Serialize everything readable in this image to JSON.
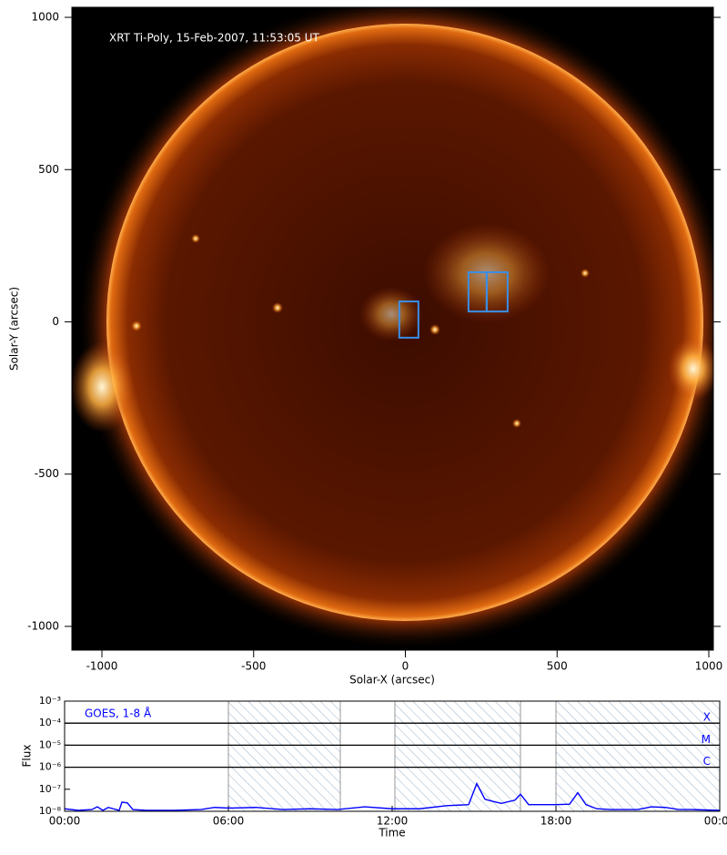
{
  "chart_data": [
    {
      "type": "image",
      "title": "XRT Ti-Poly, 15-Feb-2007, 11:53:05 UT",
      "xlabel": "Solar-X (arcsec)",
      "ylabel": "Solar-Y (arcsec)",
      "xlim": [
        -1099,
        1015
      ],
      "ylim": [
        -1078,
        1033
      ],
      "xticks": [
        {
          "value": -1000,
          "label": "-1000"
        },
        {
          "value": -500,
          "label": "-500"
        },
        0,
        500,
        1000
      ],
      "yticks": [
        {
          "value": -1000,
          "label": "-1000"
        },
        {
          "value": -500,
          "label": "-500"
        },
        0,
        500,
        1000
      ],
      "box_color": "#3a8ee6",
      "boxes": [
        {
          "x": [
            -20,
            43
          ],
          "y": [
            -52,
            67
          ]
        },
        {
          "x": [
            208,
            268
          ],
          "y": [
            34,
            163
          ]
        },
        {
          "x": [
            268,
            337
          ],
          "y": [
            34,
            163
          ]
        }
      ]
    },
    {
      "type": "line",
      "log_y": true,
      "annotation": "GOES, 1-8 Å",
      "xlabel": "Time",
      "ylabel": "Flux",
      "xlim": [
        0,
        24
      ],
      "ylim": [
        1e-08,
        0.001
      ],
      "xticks": [
        {
          "value": 0,
          "label": "00:00"
        },
        {
          "value": 6,
          "label": "06:00"
        },
        {
          "value": 12,
          "label": "12:00"
        },
        {
          "value": 18,
          "label": "18:00"
        },
        {
          "value": 24,
          "label": "00:00"
        }
      ],
      "yticks": [
        {
          "value": 1e-08,
          "label": "10⁻⁸"
        },
        {
          "value": 1e-07,
          "label": "10⁻⁷"
        },
        {
          "value": 1e-06,
          "label": "10⁻⁶"
        },
        {
          "value": 1e-05,
          "label": "10⁻⁵"
        },
        {
          "value": 0.0001,
          "label": "10⁻⁴"
        },
        {
          "value": 0.001,
          "label": "10⁻³"
        }
      ],
      "levels": [
        {
          "value": 0.0001,
          "label": "X"
        },
        {
          "value": 1e-05,
          "label": "M"
        },
        {
          "value": 1e-06,
          "label": "C"
        }
      ],
      "shaded": [
        [
          6,
          10.1
        ],
        [
          12.1,
          16.7
        ],
        [
          18,
          24
        ]
      ],
      "x": [
        0,
        0.5,
        1,
        1.2,
        1.4,
        1.6,
        2,
        2.1,
        2.3,
        2.5,
        3,
        4,
        5,
        5.5,
        6,
        7,
        8,
        9,
        10,
        11,
        12,
        13,
        14,
        14.8,
        15.1,
        15.4,
        15.7,
        16,
        16.5,
        16.7,
        17,
        18,
        18.5,
        18.8,
        19.1,
        19.5,
        20,
        21,
        21.5,
        22,
        22.5,
        23,
        24
      ],
      "series": [
        {
          "color": "#0000ff",
          "values": [
            1.3e-08,
            1.1e-08,
            1.2e-08,
            1.6e-08,
            1.1e-08,
            1.5e-08,
            1.1e-08,
            2.6e-08,
            2.4e-08,
            1.2e-08,
            1.1e-08,
            1.1e-08,
            1.2e-08,
            1.5e-08,
            1.4e-08,
            1.5e-08,
            1.2e-08,
            1.3e-08,
            1.2e-08,
            1.6e-08,
            1.3e-08,
            1.3e-08,
            1.8e-08,
            2e-08,
            1.8e-07,
            3.5e-08,
            2.8e-08,
            2.3e-08,
            3.2e-08,
            6e-08,
            2e-08,
            2e-08,
            2.1e-08,
            7e-08,
            2e-08,
            1.3e-08,
            1.2e-08,
            1.2e-08,
            1.6e-08,
            1.5e-08,
            1.2e-08,
            1.2e-08,
            1.1e-08
          ]
        }
      ]
    }
  ]
}
